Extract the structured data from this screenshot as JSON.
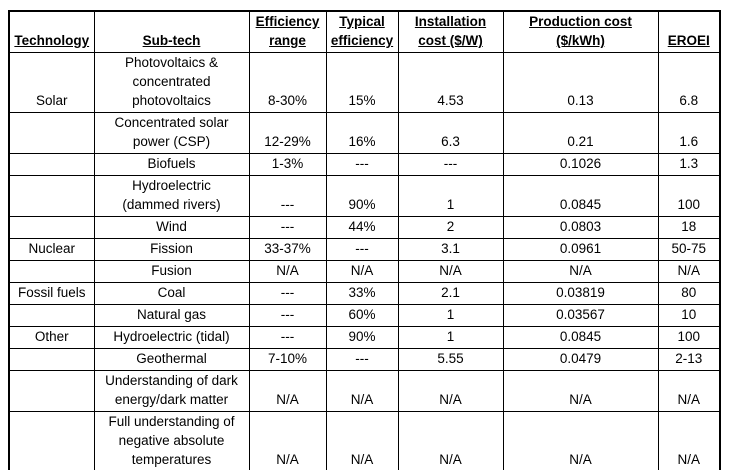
{
  "colors": {
    "background": "#ffffff",
    "text": "#000000",
    "border": "#000000"
  },
  "table": {
    "headers": [
      "Technology",
      "Sub-tech",
      "Efficiency\nrange",
      "Typical\nefficiency",
      "Installation\ncost ($/W)",
      "Production cost\n($/kWh)",
      "EROEI"
    ],
    "rows": [
      {
        "technology": "Solar",
        "sub_tech": "Photovoltaics &\nconcentrated\nphotovoltaics",
        "efficiency_range": "8-30%",
        "typical_efficiency": "15%",
        "installation_cost": "4.53",
        "production_cost": "0.13",
        "eroei": "6.8"
      },
      {
        "technology": "",
        "sub_tech": "Concentrated solar\npower (CSP)",
        "efficiency_range": "12-29%",
        "typical_efficiency": "16%",
        "installation_cost": "6.3",
        "production_cost": "0.21",
        "eroei": "1.6"
      },
      {
        "technology": "",
        "sub_tech": "Biofuels",
        "efficiency_range": "1-3%",
        "typical_efficiency": "---",
        "installation_cost": "---",
        "production_cost": "0.1026",
        "eroei": "1.3"
      },
      {
        "technology": "",
        "sub_tech": "Hydroelectric\n(dammed rivers)",
        "efficiency_range": "---",
        "typical_efficiency": "90%",
        "installation_cost": "1",
        "production_cost": "0.0845",
        "eroei": "100"
      },
      {
        "technology": "",
        "sub_tech": "Wind",
        "efficiency_range": "---",
        "typical_efficiency": "44%",
        "installation_cost": "2",
        "production_cost": "0.0803",
        "eroei": "18"
      },
      {
        "technology": "Nuclear",
        "sub_tech": "Fission",
        "efficiency_range": "33-37%",
        "typical_efficiency": "---",
        "installation_cost": "3.1",
        "production_cost": "0.0961",
        "eroei": "50-75"
      },
      {
        "technology": "",
        "sub_tech": "Fusion",
        "efficiency_range": "N/A",
        "typical_efficiency": "N/A",
        "installation_cost": "N/A",
        "production_cost": "N/A",
        "eroei": "N/A"
      },
      {
        "technology": "Fossil fuels",
        "sub_tech": "Coal",
        "efficiency_range": "---",
        "typical_efficiency": "33%",
        "installation_cost": "2.1",
        "production_cost": "0.03819",
        "eroei": "80"
      },
      {
        "technology": "",
        "sub_tech": "Natural gas",
        "efficiency_range": "---",
        "typical_efficiency": "60%",
        "installation_cost": "1",
        "production_cost": "0.03567",
        "eroei": "10"
      },
      {
        "technology": "Other",
        "sub_tech": "Hydroelectric (tidal)",
        "efficiency_range": "---",
        "typical_efficiency": "90%",
        "installation_cost": "1",
        "production_cost": "0.0845",
        "eroei": "100"
      },
      {
        "technology": "",
        "sub_tech": "Geothermal",
        "efficiency_range": "7-10%",
        "typical_efficiency": "---",
        "installation_cost": "5.55",
        "production_cost": "0.0479",
        "eroei": "2-13"
      },
      {
        "technology": "",
        "sub_tech": "Understanding of dark\nenergy/dark matter",
        "efficiency_range": "N/A",
        "typical_efficiency": "N/A",
        "installation_cost": "N/A",
        "production_cost": "N/A",
        "eroei": "N/A"
      },
      {
        "technology": "",
        "sub_tech": "Full understanding of\nnegative absolute\ntemperatures",
        "efficiency_range": "N/A",
        "typical_efficiency": "N/A",
        "installation_cost": "N/A",
        "production_cost": "N/A",
        "eroei": "N/A"
      }
    ]
  }
}
